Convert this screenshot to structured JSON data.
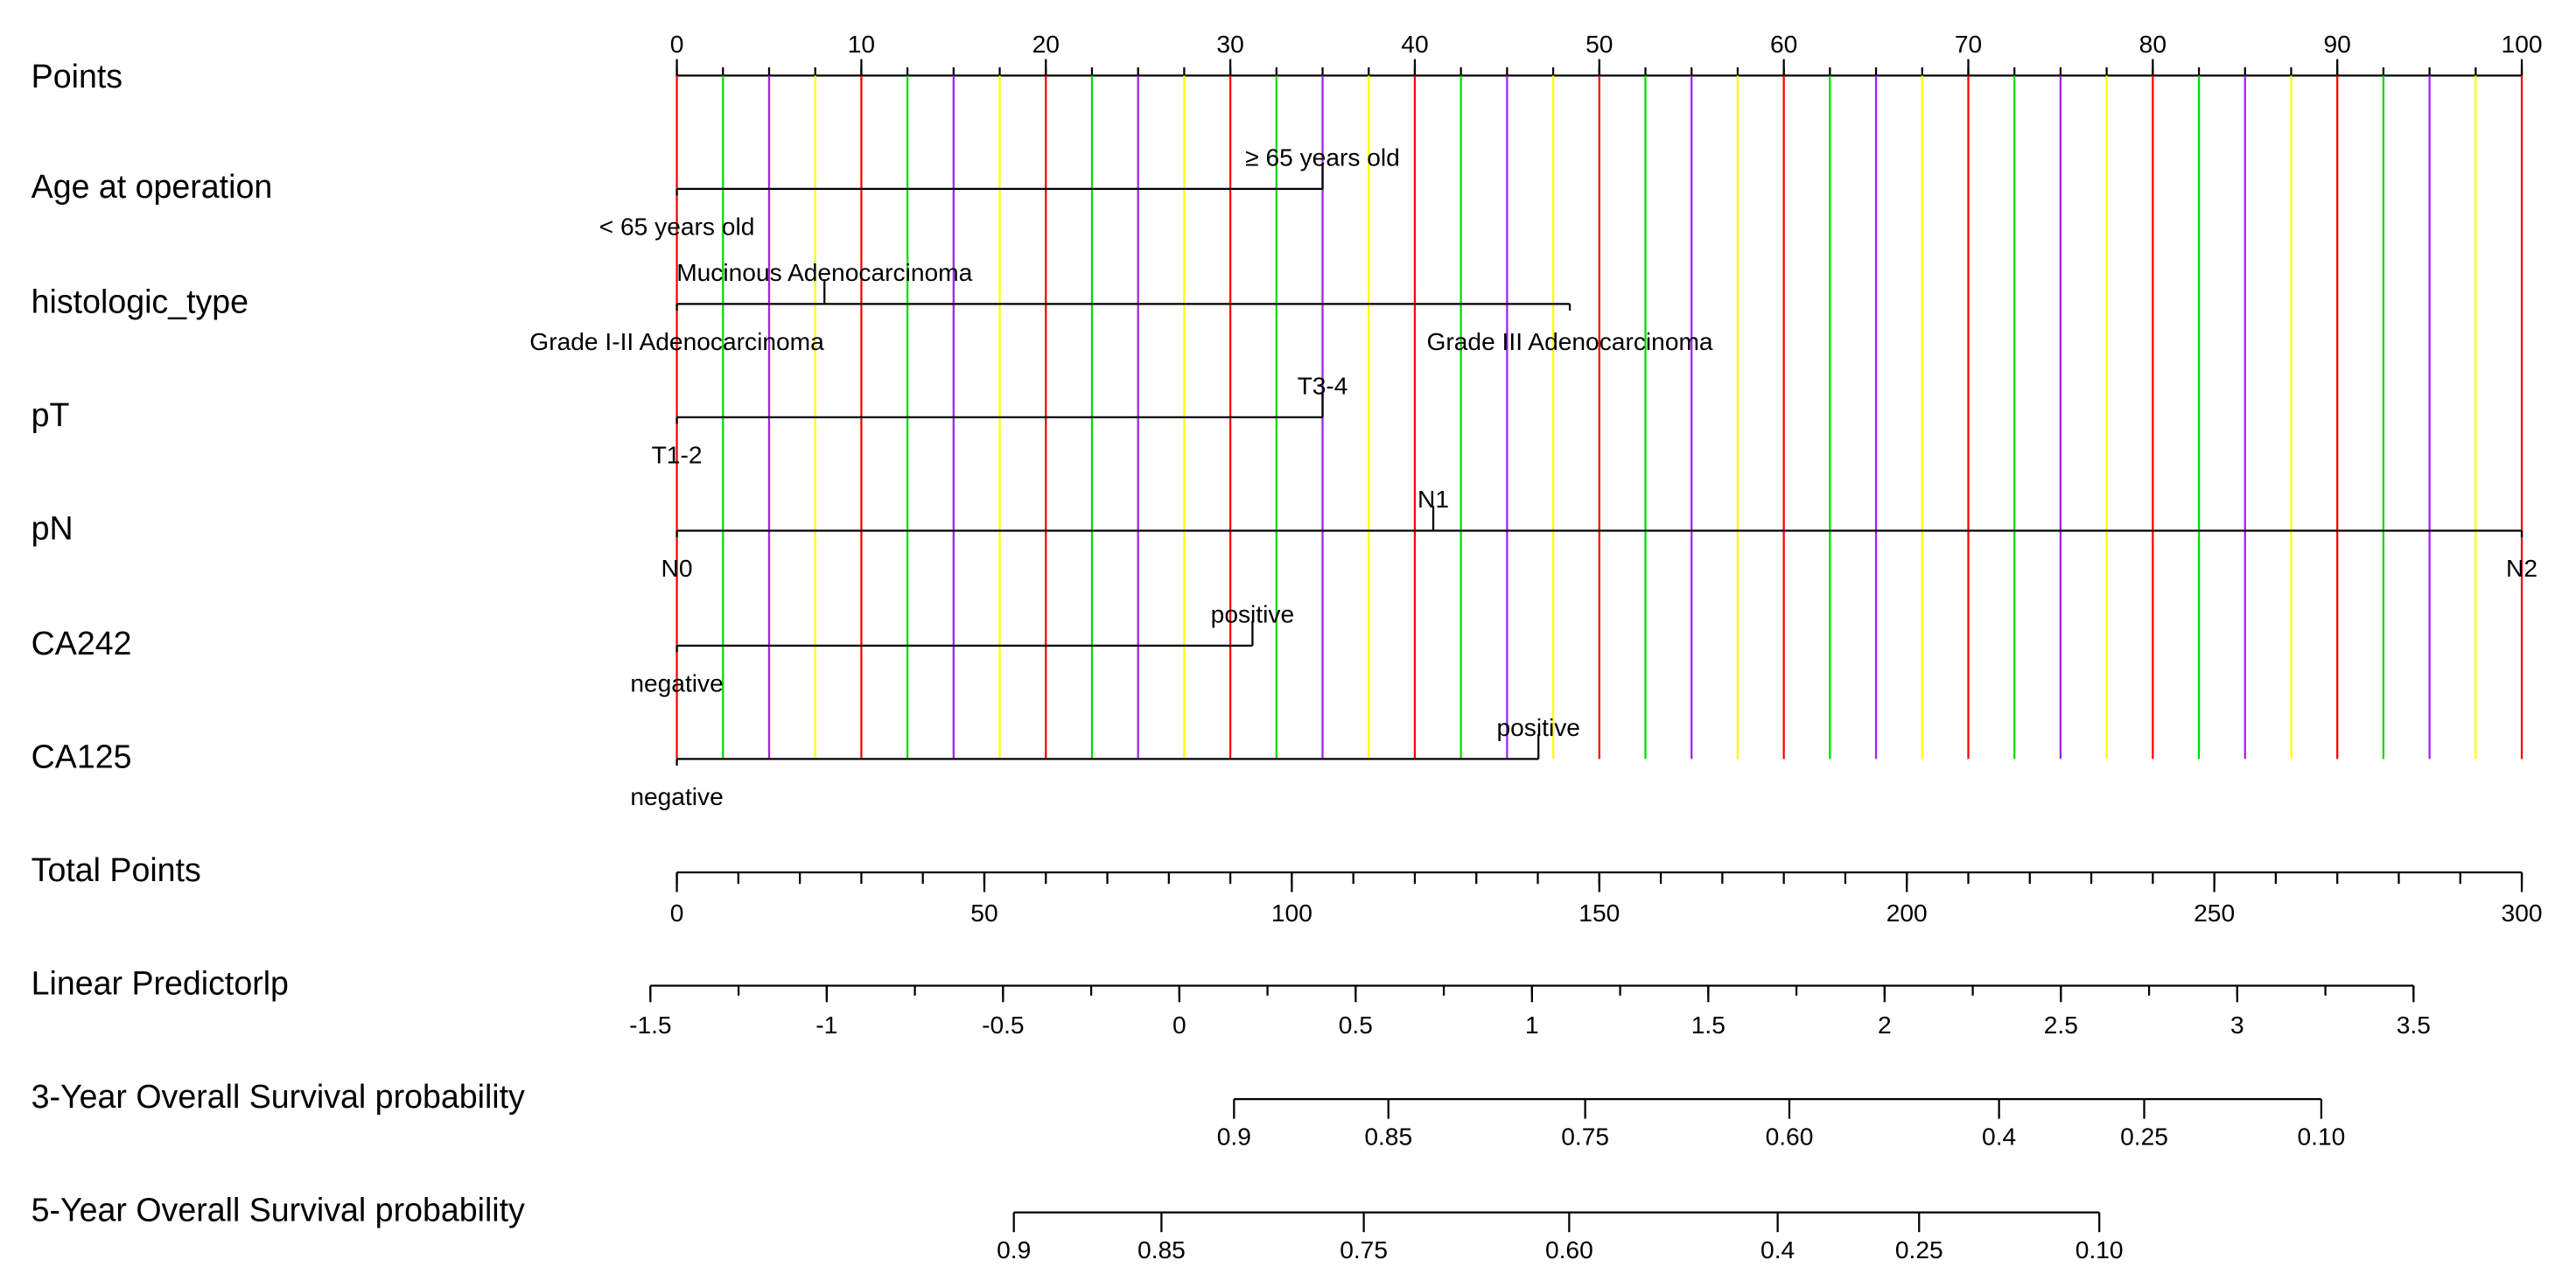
{
  "chart_data": {
    "type": "nomogram",
    "points_axis": {
      "label": "Points",
      "xlim": [
        0,
        100
      ],
      "xticks": [
        0,
        10,
        20,
        30,
        40,
        50,
        60,
        70,
        80,
        90,
        100
      ],
      "grid_step": 2.5,
      "grid_colors": [
        "#ff0000",
        "#00dd00",
        "#a020f0",
        "#ffff00"
      ]
    },
    "variables": [
      {
        "label": "Age at operation",
        "levels": [
          {
            "name": "< 65 years old",
            "points": 0
          },
          {
            "name": "≥ 65 years old",
            "points": 35
          }
        ]
      },
      {
        "label": "histologic_type",
        "levels": [
          {
            "name": "Grade I-II Adenocarcinoma",
            "points": 0
          },
          {
            "name": "Mucinous Adenocarcinoma",
            "points": 8
          },
          {
            "name": "Grade III Adenocarcinoma",
            "points": 48.4
          }
        ]
      },
      {
        "label": "pT",
        "levels": [
          {
            "name": "T1-2",
            "points": 0
          },
          {
            "name": "T3-4",
            "points": 35
          }
        ]
      },
      {
        "label": "pN",
        "levels": [
          {
            "name": "N0",
            "points": 0
          },
          {
            "name": "N1",
            "points": 41
          },
          {
            "name": "N2",
            "points": 100
          }
        ]
      },
      {
        "label": "CA242",
        "levels": [
          {
            "name": "negative",
            "points": 0
          },
          {
            "name": "positive",
            "points": 31.2
          }
        ]
      },
      {
        "label": "CA125",
        "levels": [
          {
            "name": "negative",
            "points": 0
          },
          {
            "name": "positive",
            "points": 46.7
          }
        ]
      }
    ],
    "total_points": {
      "label": "Total Points",
      "xlim": [
        0,
        300
      ],
      "xticks": [
        0,
        50,
        100,
        150,
        200,
        250,
        300
      ],
      "minor_step": 10
    },
    "linear_predictor": {
      "label": "Linear Predictorlp",
      "xlim": [
        -1.5,
        3.5
      ],
      "points_at_xlim": [
        -4.3,
        282.4
      ],
      "xticks": [
        -1.5,
        -1,
        -0.5,
        0,
        0.5,
        1,
        1.5,
        2,
        2.5,
        3,
        3.5
      ],
      "minor_step": 0.25
    },
    "survival": [
      {
        "label": "3-Year Overall Survival probability",
        "ticks": [
          {
            "value": 0.9,
            "label": "0.9",
            "points": 90.6
          },
          {
            "value": 0.85,
            "label": "0.85",
            "points": 115.7
          },
          {
            "value": 0.75,
            "label": "0.75",
            "points": 147.7
          },
          {
            "value": 0.6,
            "label": "0.60",
            "points": 180.9
          },
          {
            "value": 0.4,
            "label": "0.4",
            "points": 215.0
          },
          {
            "value": 0.25,
            "label": "0.25",
            "points": 238.6
          },
          {
            "value": 0.1,
            "label": "0.10",
            "points": 267.4
          }
        ]
      },
      {
        "label": "5-Year Overall Survival probability",
        "ticks": [
          {
            "value": 0.9,
            "label": "0.9",
            "points": 54.8
          },
          {
            "value": 0.85,
            "label": "0.85",
            "points": 78.8
          },
          {
            "value": 0.75,
            "label": "0.75",
            "points": 111.7
          },
          {
            "value": 0.6,
            "label": "0.60",
            "points": 145.1
          },
          {
            "value": 0.4,
            "label": "0.4",
            "points": 179.0
          },
          {
            "value": 0.25,
            "label": "0.25",
            "points": 202.0
          },
          {
            "value": 0.1,
            "label": "0.10",
            "points": 231.3
          }
        ]
      }
    ]
  }
}
